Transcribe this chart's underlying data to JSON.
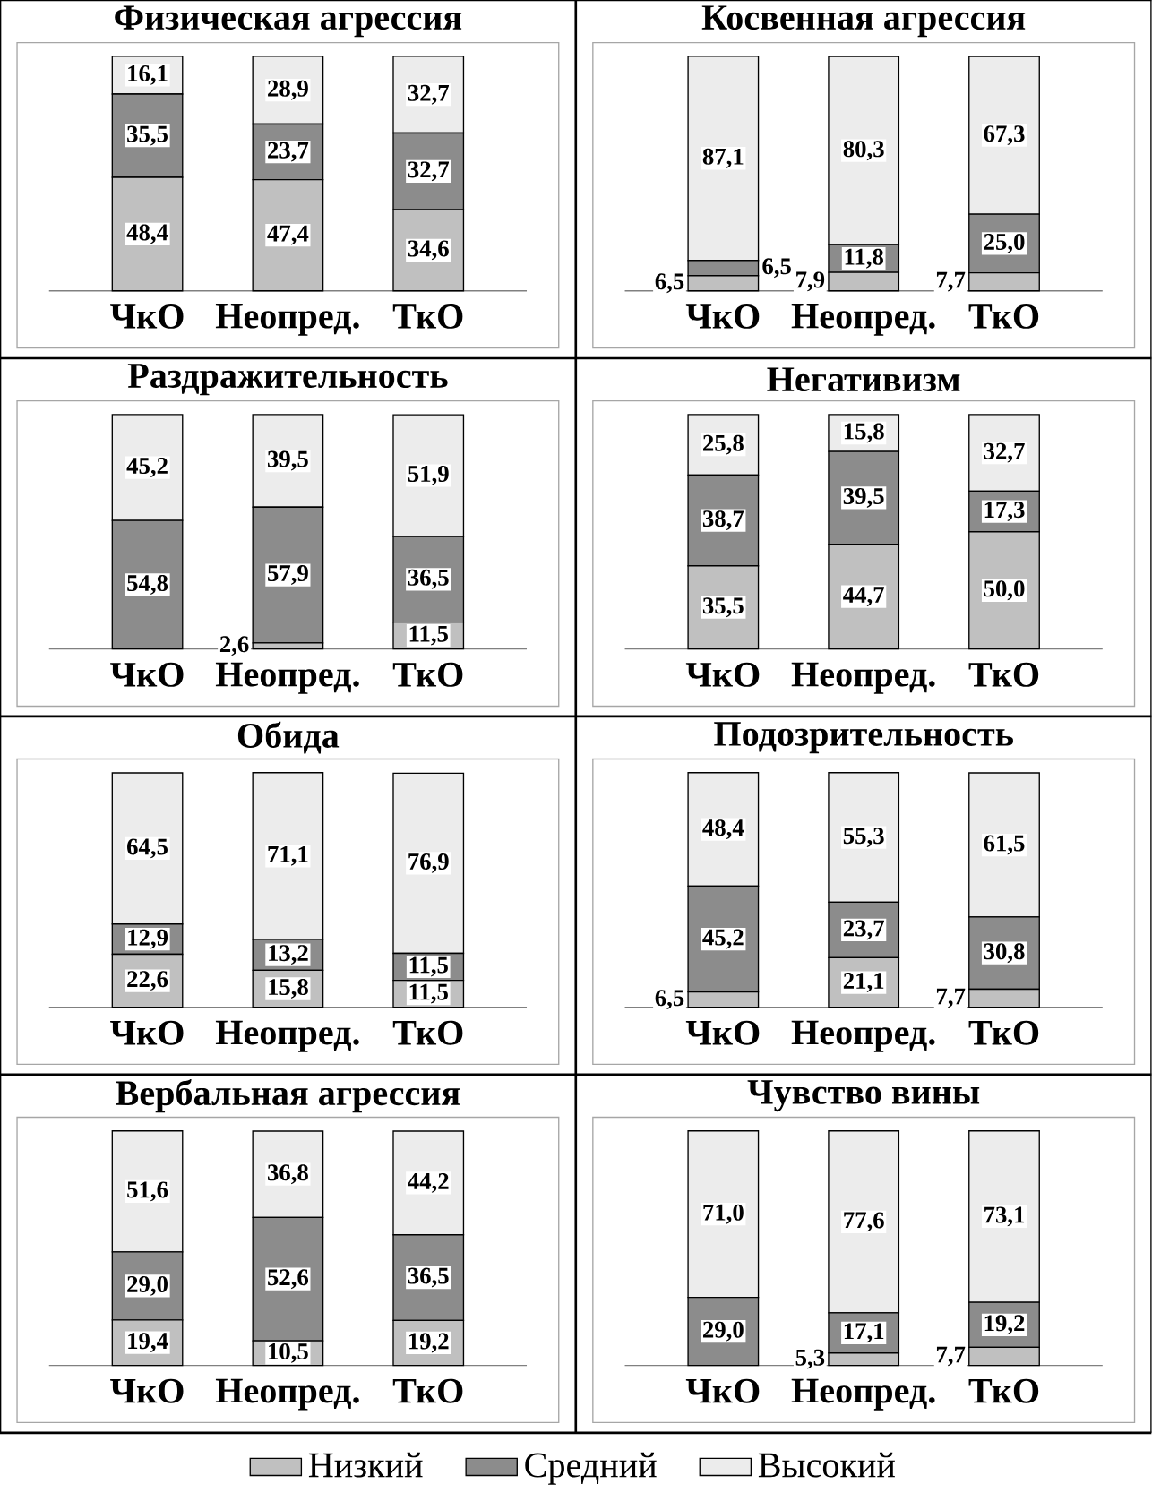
{
  "chart_data": [
    {
      "type": "bar",
      "stacked": true,
      "title": "Физическая агрессия",
      "categories": [
        "ЧкО",
        "Неопред.",
        "ТкО"
      ],
      "series": [
        {
          "color": "#c0c0c0",
          "values": [
            48.4,
            47.4,
            34.6
          ],
          "value_labels": [
            "48,4",
            "47,4",
            "34,6"
          ]
        },
        {
          "color": "#8c8c8c",
          "values": [
            35.5,
            23.7,
            32.7
          ],
          "value_labels": [
            "35,5",
            "23,7",
            "32,7"
          ]
        },
        {
          "color": "#ececec",
          "values": [
            16.1,
            28.9,
            32.7
          ],
          "value_labels": [
            "16,1",
            "28,9",
            "32,7"
          ]
        }
      ]
    },
    {
      "type": "bar",
      "stacked": true,
      "title": "Косвенная агрессия",
      "categories": [
        "ЧкО",
        "Неопред.",
        "ТкО"
      ],
      "series": [
        {
          "color": "#c0c0c0",
          "values": [
            6.5,
            7.9,
            7.7
          ],
          "value_labels": [
            "6,5",
            "7,9",
            "7,7"
          ]
        },
        {
          "color": "#8c8c8c",
          "values": [
            6.5,
            11.8,
            25.0
          ],
          "value_labels": [
            "6,5",
            "11,8",
            "25,0"
          ]
        },
        {
          "color": "#ececec",
          "values": [
            87.1,
            80.3,
            67.3
          ],
          "value_labels": [
            "87,1",
            "80,3",
            "67,3"
          ]
        }
      ]
    },
    {
      "type": "bar",
      "stacked": true,
      "title": "Раздражительность",
      "categories": [
        "ЧкО",
        "Неопред.",
        "ТкО"
      ],
      "series": [
        {
          "color": "#c0c0c0",
          "values": [
            0,
            2.6,
            11.5
          ],
          "value_labels": [
            null,
            "2,6",
            "11,5"
          ]
        },
        {
          "color": "#8c8c8c",
          "values": [
            54.8,
            57.9,
            36.5
          ],
          "value_labels": [
            "54,8",
            "57,9",
            "36,5"
          ]
        },
        {
          "color": "#ececec",
          "values": [
            45.2,
            39.5,
            51.9
          ],
          "value_labels": [
            "45,2",
            "39,5",
            "51,9"
          ]
        }
      ]
    },
    {
      "type": "bar",
      "stacked": true,
      "title": "Негативизм",
      "categories": [
        "ЧкО",
        "Неопред.",
        "ТкО"
      ],
      "series": [
        {
          "color": "#c0c0c0",
          "values": [
            35.5,
            44.7,
            50.0
          ],
          "value_labels": [
            "35,5",
            "44,7",
            "50,0"
          ]
        },
        {
          "color": "#8c8c8c",
          "values": [
            38.7,
            39.5,
            17.3
          ],
          "value_labels": [
            "38,7",
            "39,5",
            "17,3"
          ]
        },
        {
          "color": "#ececec",
          "values": [
            25.8,
            15.8,
            32.7
          ],
          "value_labels": [
            "25,8",
            "15,8",
            "32,7"
          ]
        }
      ]
    },
    {
      "type": "bar",
      "stacked": true,
      "title": "Обида",
      "categories": [
        "ЧкО",
        "Неопред.",
        "ТкО"
      ],
      "series": [
        {
          "color": "#c0c0c0",
          "values": [
            22.6,
            15.8,
            11.5
          ],
          "value_labels": [
            "22,6",
            "15,8",
            "11,5"
          ]
        },
        {
          "color": "#8c8c8c",
          "values": [
            12.9,
            13.2,
            11.5
          ],
          "value_labels": [
            "12,9",
            "13,2",
            "11,5"
          ]
        },
        {
          "color": "#ececec",
          "values": [
            64.5,
            71.1,
            76.9
          ],
          "value_labels": [
            "64,5",
            "71,1",
            "76,9"
          ]
        }
      ]
    },
    {
      "type": "bar",
      "stacked": true,
      "title": "Подозрительность",
      "categories": [
        "ЧкО",
        "Неопред.",
        "ТкО"
      ],
      "series": [
        {
          "color": "#c0c0c0",
          "values": [
            6.5,
            21.1,
            7.7
          ],
          "value_labels": [
            "6,5",
            "21,1",
            "7,7"
          ]
        },
        {
          "color": "#8c8c8c",
          "values": [
            45.2,
            23.7,
            30.8
          ],
          "value_labels": [
            "45,2",
            "23,7",
            "30,8"
          ]
        },
        {
          "color": "#ececec",
          "values": [
            48.4,
            55.3,
            61.5
          ],
          "value_labels": [
            "48,4",
            "55,3",
            "61,5"
          ]
        }
      ]
    },
    {
      "type": "bar",
      "stacked": true,
      "title": "Вербальная агрессия",
      "categories": [
        "ЧкО",
        "Неопред.",
        "ТкО"
      ],
      "series": [
        {
          "color": "#c0c0c0",
          "values": [
            19.4,
            10.5,
            19.2
          ],
          "value_labels": [
            "19,4",
            "10,5",
            "19,2"
          ]
        },
        {
          "color": "#8c8c8c",
          "values": [
            29.0,
            52.6,
            36.5
          ],
          "value_labels": [
            "29,0",
            "52,6",
            "36,5"
          ]
        },
        {
          "color": "#ececec",
          "values": [
            51.6,
            36.8,
            44.2
          ],
          "value_labels": [
            "51,6",
            "36,8",
            "44,2"
          ]
        }
      ]
    },
    {
      "type": "bar",
      "stacked": true,
      "title": "Чувство вины",
      "categories": [
        "ЧкО",
        "Неопред.",
        "ТкО"
      ],
      "legend": "bottom",
      "series": [
        {
          "name": "Низкий",
          "color": "#c0c0c0",
          "values": [
            0,
            5.3,
            7.7
          ],
          "value_labels": [
            null,
            "5,3",
            "7,7"
          ]
        },
        {
          "name": "Средний",
          "color": "#8c8c8c",
          "values": [
            29.0,
            17.1,
            19.2
          ],
          "value_labels": [
            "29,0",
            "17,1",
            "19,2"
          ]
        },
        {
          "name": "Высокий",
          "color": "#ececec",
          "values": [
            71.0,
            77.6,
            73.1
          ],
          "value_labels": [
            "71,0",
            "77,6",
            "73,1"
          ]
        }
      ]
    }
  ]
}
